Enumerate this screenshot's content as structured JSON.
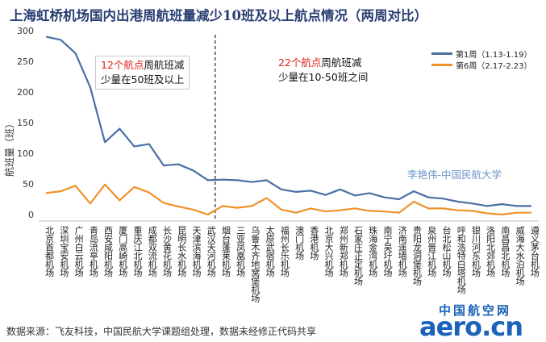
{
  "chart_data": {
    "type": "line",
    "title": "上海虹桥机场国内出港周航班量减少10班及以上航点情况（两周对比）",
    "ylabel": "航班量（班）",
    "xlabel": "",
    "ylim": [
      0,
      300
    ],
    "yticks": [
      0,
      50,
      100,
      150,
      200,
      250,
      300
    ],
    "grid": false,
    "legend_position": "top-right",
    "categories": [
      "北京首都机场",
      "深圳宝安机场",
      "广州白云机场",
      "青岛流亭机场",
      "西安咸阳机场",
      "厦门高崎机场",
      "重庆江北机场",
      "成都双流机场",
      "长沙黄花机场",
      "昆明长水机场",
      "天津滨海机场",
      "武汉天河机场",
      "烟台蓬莱机场",
      "三亚凤凰机场",
      "乌鲁木齐地窝堡机场",
      "太原武宿机场",
      "福州长乐机场",
      "澳门机场",
      "香港机场",
      "北京大兴机场",
      "郑州新郑机场",
      "石家庄正定机场",
      "珠海金湾机场",
      "南宁吴圩机场",
      "济南遥墙机场",
      "贵阳龙洞堡机场",
      "泉州晋江机场",
      "台北松山机场",
      "呼和浩特白塔机场",
      "银川河东机场",
      "洛阳北郊机场",
      "南昌昌北机场",
      "威海大水泊机场",
      "遵义茅台机场"
    ],
    "series": [
      {
        "name": "第1周（1.13-1.19）",
        "color": "#4a6fa5",
        "values": [
          290,
          285,
          263,
          208,
          118,
          140,
          111,
          115,
          80,
          82,
          72,
          56,
          57,
          56,
          53,
          56,
          41,
          37,
          39,
          32,
          41,
          31,
          35,
          28,
          25,
          38,
          28,
          26,
          21,
          18,
          14,
          17,
          14,
          14
        ]
      },
      {
        "name": "第6周（2.17-2.23）",
        "color": "#f0922b",
        "values": [
          35,
          38,
          47,
          18,
          49,
          23,
          45,
          36,
          19,
          13,
          8,
          0,
          14,
          11,
          14,
          27,
          8,
          3,
          10,
          5,
          7,
          10,
          6,
          5,
          3,
          21,
          10,
          10,
          7,
          6,
          2,
          0,
          3,
          3
        ]
      }
    ],
    "divider_after_index": 11,
    "annotations": {
      "left": {
        "highlight": "12个航点",
        "rest_line1": "周航班减",
        "line2": "少量在50班及以上"
      },
      "right": {
        "highlight": "22个航点",
        "rest_line1": "周航班减",
        "line2": "少量在10-50班之间"
      }
    }
  },
  "watermark": "李艳伟-中国民航大学",
  "source": "数据来源：飞友科技，中国民航大学课题组处理，数据未经修正代码共享",
  "logo": {
    "cn": "中国航空网",
    "en": "aero.cn"
  }
}
